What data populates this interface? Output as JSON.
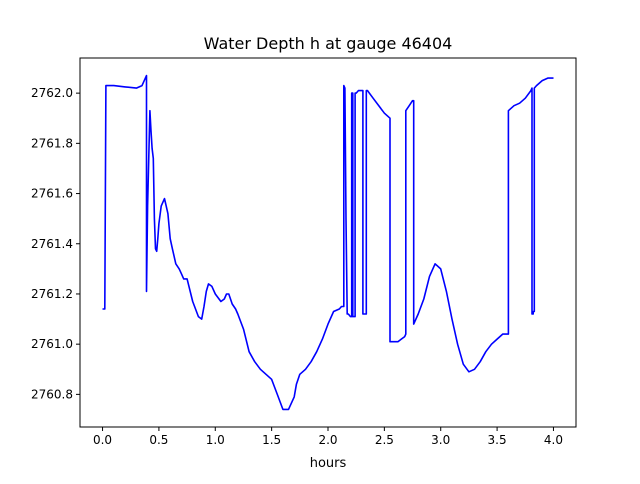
{
  "chart_data": {
    "type": "line",
    "title": "Water Depth h at gauge 46404",
    "xlabel": "hours",
    "ylabel": "",
    "xlim": [
      -0.2,
      4.2
    ],
    "ylim": [
      2760.67,
      2762.14
    ],
    "xticks": [
      {
        "v": 0.0,
        "label": "0.0"
      },
      {
        "v": 0.5,
        "label": "0.5"
      },
      {
        "v": 1.0,
        "label": "1.0"
      },
      {
        "v": 1.5,
        "label": "1.5"
      },
      {
        "v": 2.0,
        "label": "2.0"
      },
      {
        "v": 2.5,
        "label": "2.5"
      },
      {
        "v": 3.0,
        "label": "3.0"
      },
      {
        "v": 3.5,
        "label": "3.5"
      },
      {
        "v": 4.0,
        "label": "4.0"
      }
    ],
    "yticks": [
      {
        "v": 2760.8,
        "label": "2760.8"
      },
      {
        "v": 2761.0,
        "label": "2761.0"
      },
      {
        "v": 2761.2,
        "label": "2761.2"
      },
      {
        "v": 2761.4,
        "label": "2761.4"
      },
      {
        "v": 2761.6,
        "label": "2761.6"
      },
      {
        "v": 2761.8,
        "label": "2761.8"
      },
      {
        "v": 2762.0,
        "label": "2762.0"
      }
    ],
    "grid": false,
    "legend": "none",
    "series": [
      {
        "color": "#0000ff",
        "x": [
          0.0,
          0.02,
          0.03,
          0.1,
          0.2,
          0.3,
          0.35,
          0.39,
          0.39,
          0.4,
          0.42,
          0.43,
          0.44,
          0.45,
          0.46,
          0.47,
          0.48,
          0.49,
          0.5,
          0.52,
          0.55,
          0.58,
          0.6,
          0.62,
          0.65,
          0.68,
          0.7,
          0.72,
          0.75,
          0.8,
          0.85,
          0.88,
          0.9,
          0.92,
          0.94,
          0.97,
          1.0,
          1.05,
          1.08,
          1.1,
          1.12,
          1.15,
          1.18,
          1.2,
          1.25,
          1.3,
          1.35,
          1.4,
          1.45,
          1.5,
          1.55,
          1.6,
          1.65,
          1.7,
          1.72,
          1.75,
          1.8,
          1.85,
          1.9,
          1.95,
          2.0,
          2.05,
          2.1,
          2.12,
          2.13,
          2.14,
          2.14,
          2.15,
          2.16,
          2.17,
          2.17,
          2.18,
          2.2,
          2.21,
          2.21,
          2.22,
          2.22,
          2.23,
          2.24,
          2.24,
          2.25,
          2.27,
          2.3,
          2.31,
          2.31,
          2.32,
          2.33,
          2.34,
          2.34,
          2.35,
          2.4,
          2.5,
          2.55,
          2.55,
          2.6,
          2.62,
          2.65,
          2.68,
          2.69,
          2.69,
          2.72,
          2.75,
          2.76,
          2.76,
          2.8,
          2.85,
          2.9,
          2.95,
          3.0,
          3.05,
          3.1,
          3.15,
          3.2,
          3.25,
          3.3,
          3.35,
          3.4,
          3.45,
          3.5,
          3.55,
          3.6,
          3.6,
          3.65,
          3.7,
          3.75,
          3.8,
          3.81,
          3.81,
          3.82,
          3.82,
          3.83,
          3.83,
          3.85,
          3.9,
          3.95,
          4.0
        ],
        "values": [
          2761.14,
          2761.14,
          2762.03,
          2762.03,
          2762.025,
          2762.02,
          2762.03,
          2762.07,
          2761.21,
          2761.55,
          2761.93,
          2761.85,
          2761.78,
          2761.74,
          2761.5,
          2761.38,
          2761.37,
          2761.42,
          2761.48,
          2761.55,
          2761.58,
          2761.52,
          2761.42,
          2761.38,
          2761.32,
          2761.3,
          2761.28,
          2761.26,
          2761.26,
          2761.17,
          2761.11,
          2761.1,
          2761.15,
          2761.21,
          2761.24,
          2761.23,
          2761.2,
          2761.17,
          2761.18,
          2761.2,
          2761.2,
          2761.16,
          2761.14,
          2761.12,
          2761.06,
          2760.97,
          2760.93,
          2760.9,
          2760.88,
          2760.86,
          2760.8,
          2760.74,
          2760.74,
          2760.79,
          2760.84,
          2760.88,
          2760.9,
          2760.93,
          2760.97,
          2761.02,
          2761.08,
          2761.13,
          2761.14,
          2761.15,
          2761.15,
          2761.15,
          2762.03,
          2762.02,
          2761.5,
          2761.12,
          2761.12,
          2761.12,
          2761.11,
          2761.11,
          2762.0,
          2762.0,
          2761.11,
          2761.11,
          2761.11,
          2762.0,
          2762.0,
          2762.01,
          2762.01,
          2762.01,
          2761.12,
          2761.12,
          2761.12,
          2761.12,
          2762.01,
          2762.01,
          2761.98,
          2761.92,
          2761.9,
          2761.01,
          2761.01,
          2761.01,
          2761.02,
          2761.03,
          2761.04,
          2761.93,
          2761.95,
          2761.97,
          2761.97,
          2761.08,
          2761.12,
          2761.18,
          2761.27,
          2761.32,
          2761.3,
          2761.21,
          2761.1,
          2761.0,
          2760.92,
          2760.89,
          2760.9,
          2760.93,
          2760.97,
          2761.0,
          2761.02,
          2761.04,
          2761.04,
          2761.93,
          2761.95,
          2761.96,
          2761.98,
          2762.01,
          2762.02,
          2761.12,
          2761.12,
          2761.13,
          2761.13,
          2762.02,
          2762.03,
          2762.05,
          2762.06,
          2762.06
        ]
      }
    ]
  }
}
